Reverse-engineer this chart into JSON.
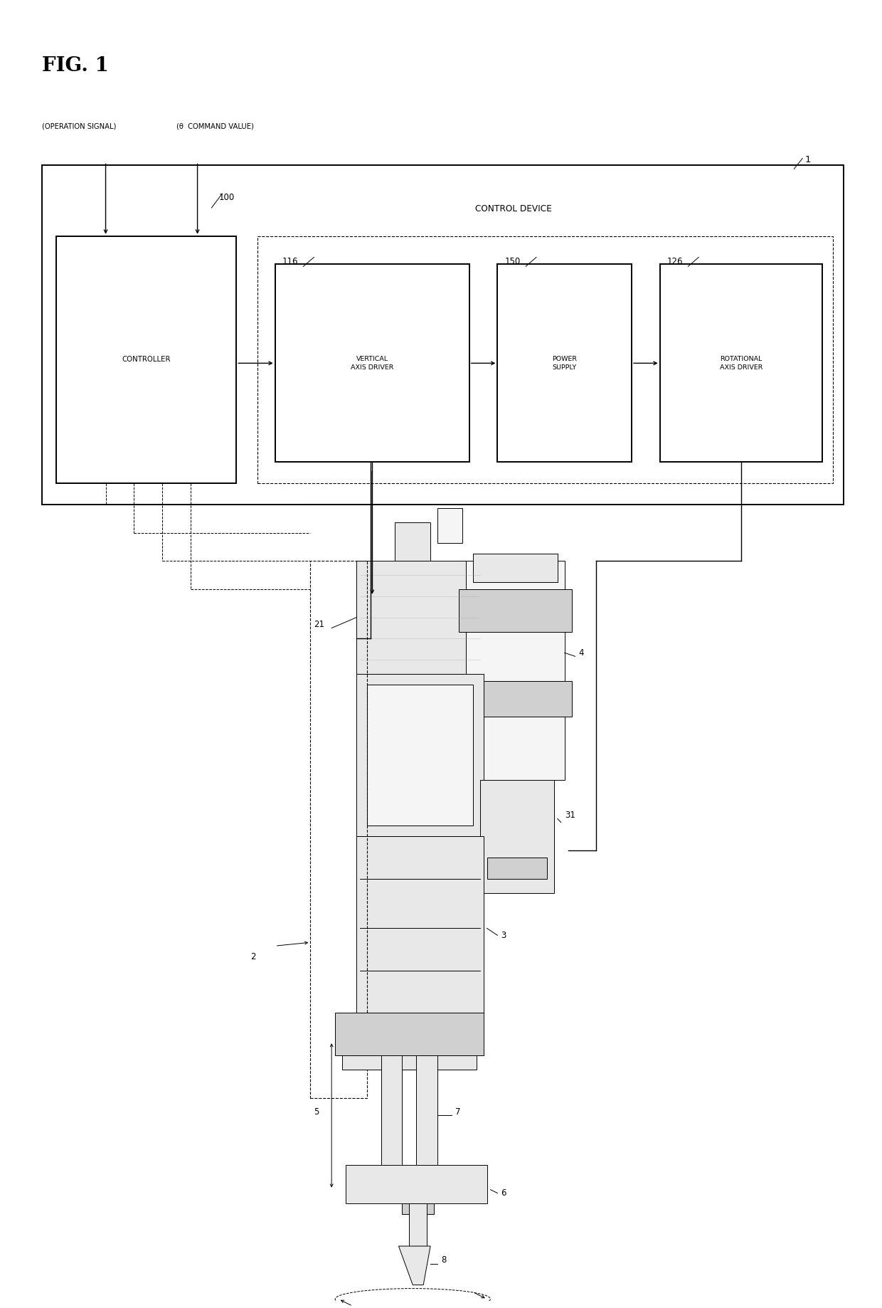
{
  "title": "FIG. 1",
  "bg_color": "#ffffff",
  "label_1": "1",
  "label_control_device": "CONTROL DEVICE",
  "label_100": "100",
  "label_controller": "CONTROLLER",
  "label_116": "116",
  "label_150": "150",
  "label_126": "126",
  "label_vertical_axis_driver": "VERTICAL\nAXIS DRIVER",
  "label_power_supply": "POWER\nSUPPLY",
  "label_rotational_axis_driver": "ROTATIONAL\nAXIS DRIVER",
  "label_op_signal": "(OPERATION SIGNAL)",
  "label_theta_cmd": "(θ  COMMAND VALUE)",
  "label_2": "2",
  "label_3": "3",
  "label_4": "4",
  "label_5": "5",
  "label_6": "6",
  "label_7": "7",
  "label_8": "8",
  "label_21": "21",
  "label_31": "31",
  "line_color": "#000000",
  "text_color": "#000000",
  "fig_width": 12.4,
  "fig_height": 18.38
}
